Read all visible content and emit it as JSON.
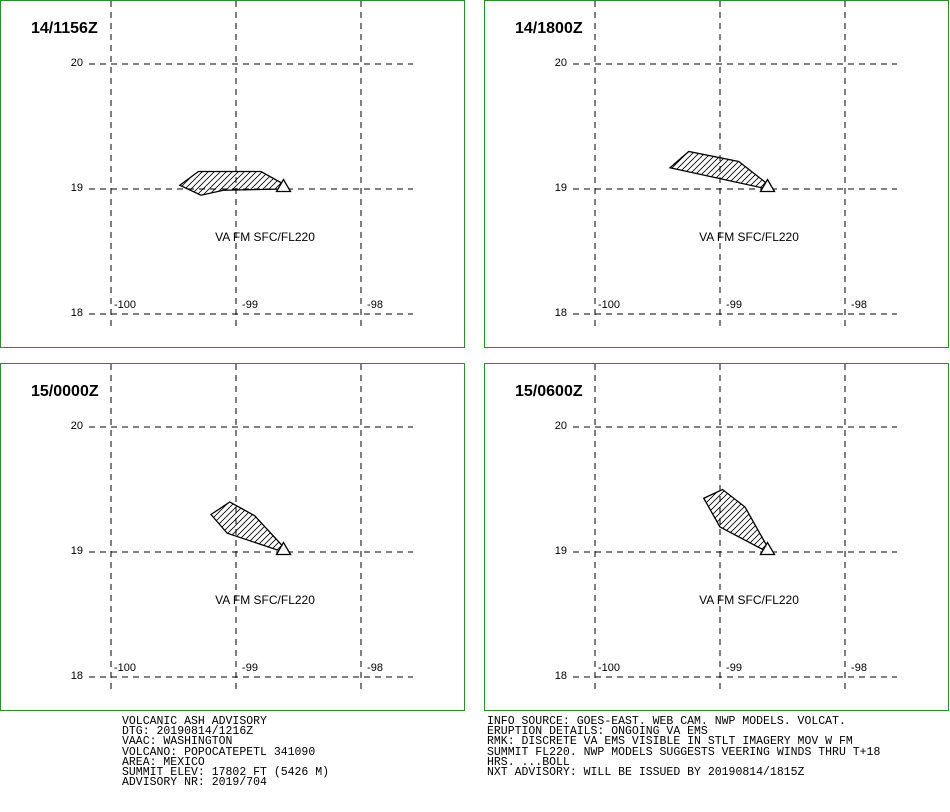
{
  "panels": [
    {
      "title": "14/1156Z",
      "label": "VA FM SFC/FL220",
      "polygon": [
        [
          -99.45,
          19.03
        ],
        [
          -99.3,
          19.14
        ],
        [
          -98.8,
          19.14
        ],
        [
          -98.62,
          19.04
        ],
        [
          -98.62,
          19.0
        ],
        [
          -99.1,
          18.99
        ],
        [
          -99.28,
          18.95
        ]
      ]
    },
    {
      "title": "14/1800Z",
      "label": "VA FM SFC/FL220",
      "polygon": [
        [
          -99.4,
          19.17
        ],
        [
          -99.25,
          19.3
        ],
        [
          -98.85,
          19.22
        ],
        [
          -98.62,
          19.04
        ],
        [
          -98.62,
          19.0
        ]
      ]
    },
    {
      "title": "15/0000Z",
      "label": "VA FM SFC/FL220",
      "polygon": [
        [
          -99.2,
          19.3
        ],
        [
          -99.05,
          19.4
        ],
        [
          -98.85,
          19.29
        ],
        [
          -98.62,
          19.04
        ],
        [
          -98.62,
          19.0
        ],
        [
          -99.07,
          19.15
        ]
      ]
    },
    {
      "title": "15/0600Z",
      "label": "VA FM SFC/FL220",
      "polygon": [
        [
          -99.13,
          19.43
        ],
        [
          -98.98,
          19.5
        ],
        [
          -98.8,
          19.36
        ],
        [
          -98.62,
          19.04
        ],
        [
          -98.62,
          19.0
        ],
        [
          -99.0,
          19.2
        ]
      ]
    }
  ],
  "axes": {
    "lat_ticks": [
      "20",
      "19",
      "18"
    ],
    "lon_ticks": [
      "-100",
      "-99",
      "-98"
    ],
    "lat_values": [
      20,
      19,
      18
    ],
    "lon_values": [
      -100,
      -99,
      -98
    ]
  },
  "volcano": {
    "lon": -98.62,
    "lat": 19.02
  },
  "advisory_left": [
    "VOLCANIC ASH ADVISORY",
    "DTG: 20190814/1216Z",
    "VAAC: WASHINGTON",
    "VOLCANO: POPOCATEPETL 341090",
    "AREA: MEXICO",
    "SUMMIT ELEV: 17802 FT (5426 M)",
    "ADVISORY NR: 2019/704"
  ],
  "advisory_right": [
    "INFO SOURCE: GOES-EAST. WEB CAM. NWP MODELS. VOLCAT.",
    "ERUPTION DETAILS: ONGOING VA EMS",
    "RMK: DISCRETE VA EMS VISIBLE IN STLT IMAGERY MOV W FM",
    "SUMMIT FL220. NWP MODELS SUGGESTS VEERING WINDS THRU T+18",
    "HRS. ...BOLL",
    "NXT ADVISORY: WILL BE ISSUED BY 20190814/1815Z"
  ],
  "colors": {
    "border": "#2e8b2e",
    "ink": "#000000"
  }
}
